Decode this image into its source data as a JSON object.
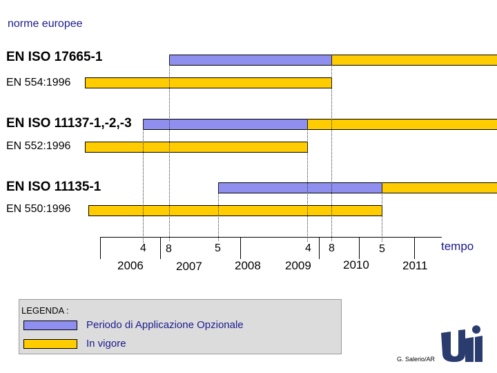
{
  "title": "norme europee",
  "groups": [
    {
      "new_standard": "EN ISO 17665-1",
      "old_standard": "EN 554:1996"
    },
    {
      "new_standard": "EN ISO 11137-1,-2,-3",
      "old_standard": "EN 552:1996"
    },
    {
      "new_standard": "EN ISO 11135-1",
      "old_standard": "EN 550:1996"
    }
  ],
  "timeline": {
    "axis_label": "tempo",
    "month_ticks": [
      "4",
      "8",
      "5",
      "4",
      "8",
      "5"
    ],
    "years": [
      "2006",
      "2007",
      "2008",
      "2009",
      "2010",
      "2011"
    ]
  },
  "legend": {
    "title": "LEGENDA :",
    "items": [
      {
        "label": "Periodo di Applicazione Opzionale",
        "color": "#8f8ff0"
      },
      {
        "label": "In vigore",
        "color": "#ffcc00"
      }
    ]
  },
  "credit": "G. Salerio/AR",
  "logo_text": "UNI",
  "colors": {
    "optional": "#8f8ff0",
    "in_force": "#ffcc00",
    "title": "#1a1a8c"
  }
}
